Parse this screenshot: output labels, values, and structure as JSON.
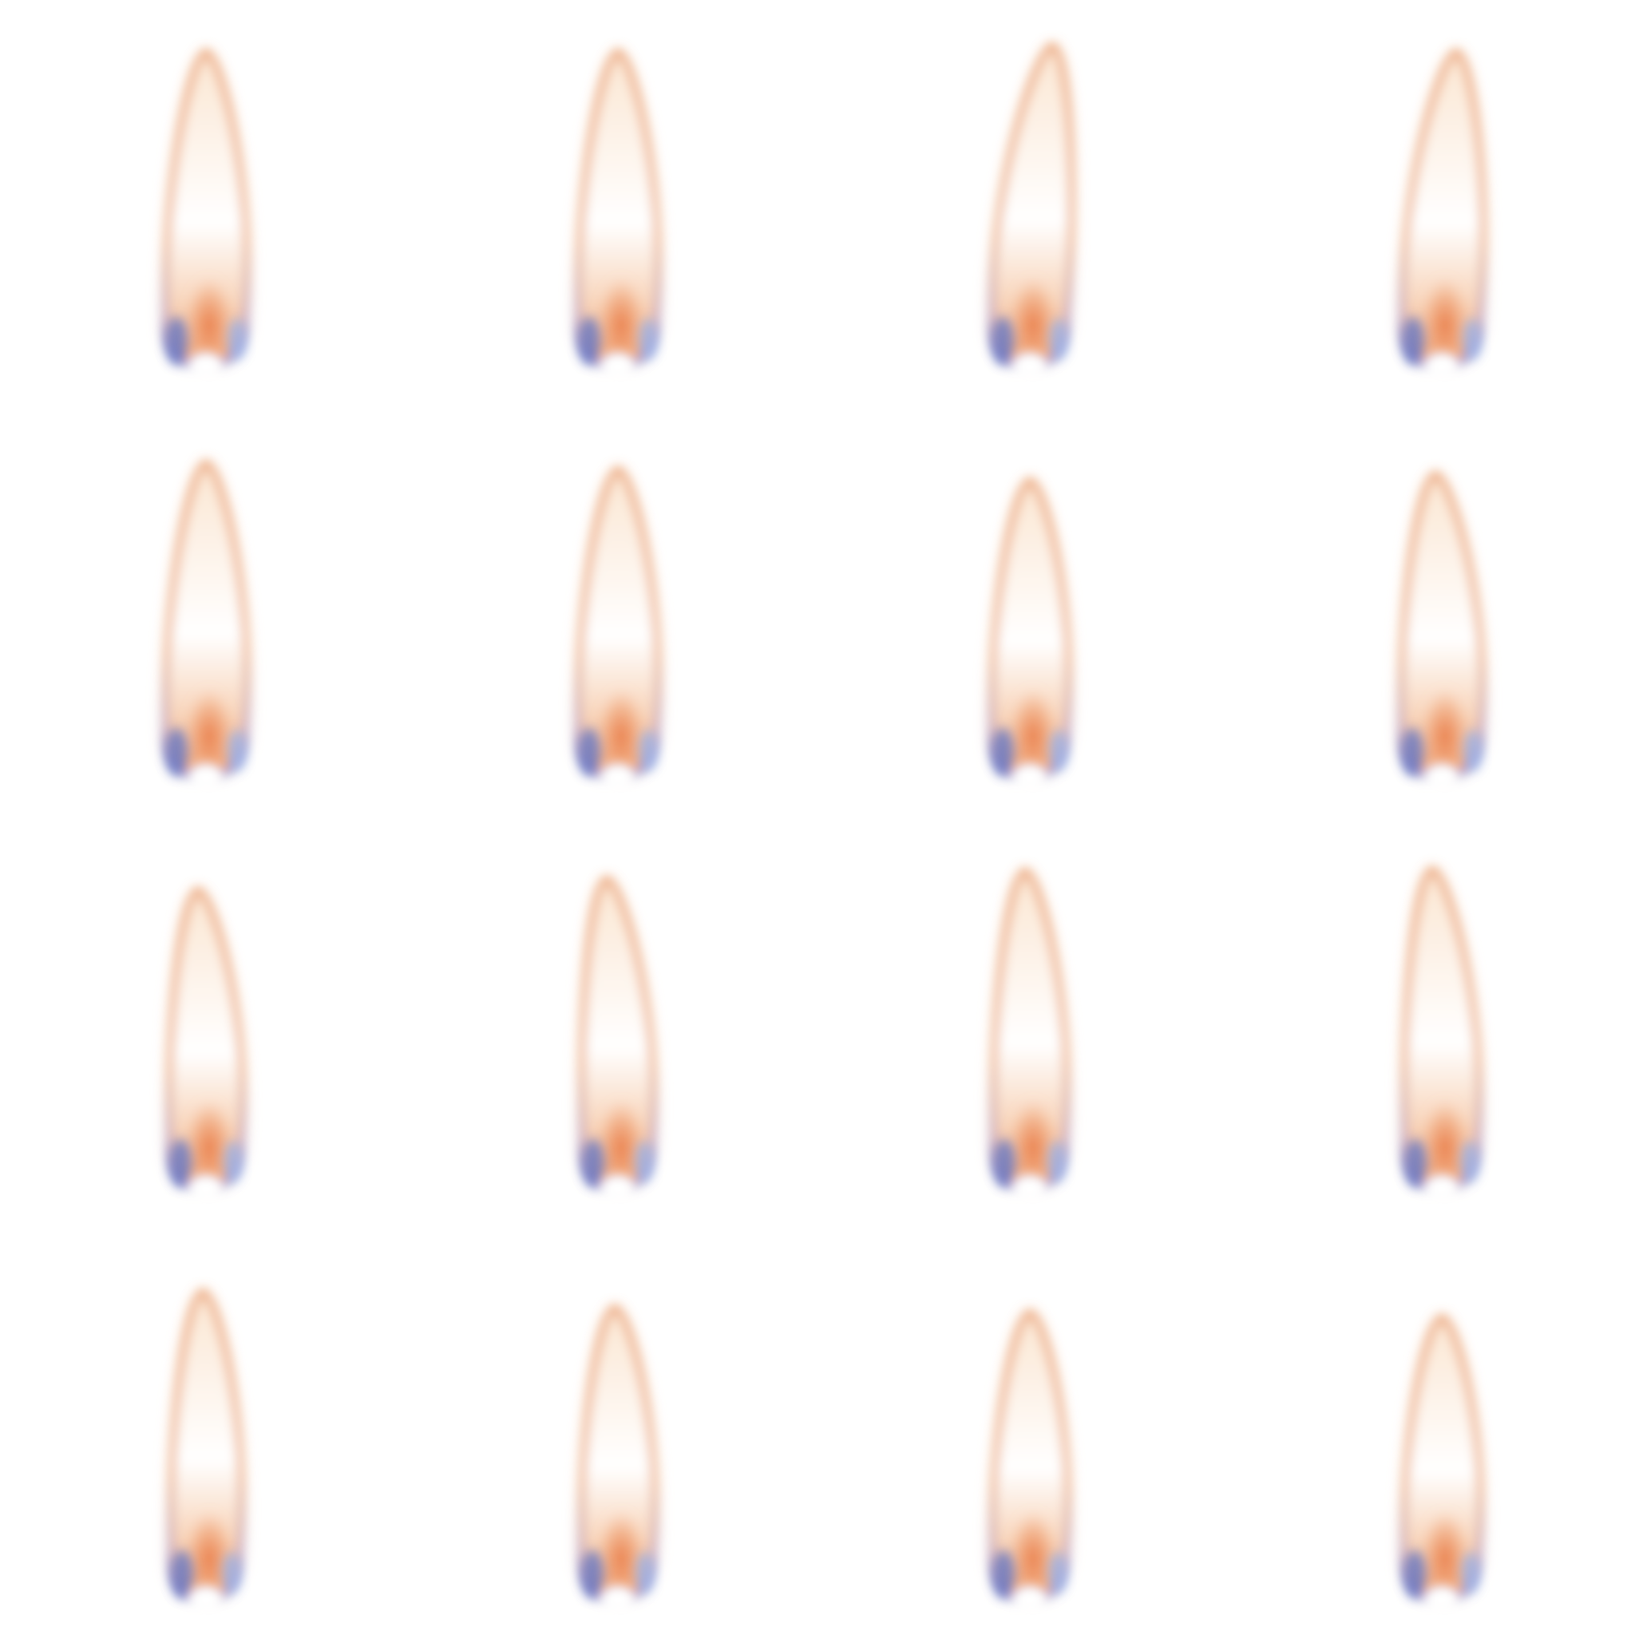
{
  "sprite_sheet": {
    "rows": 4,
    "columns": 4,
    "frame_count": 16,
    "background": "#ffffff",
    "colors": {
      "outer_edge": "#E8945A",
      "glow": "#F6C79C",
      "core": "#FFFDF9",
      "hot_spot": "#E97A45",
      "base_blue": "#5A72C8",
      "base_light_blue": "#8FB0F0"
    },
    "icon": "candle-flame-icon"
  }
}
